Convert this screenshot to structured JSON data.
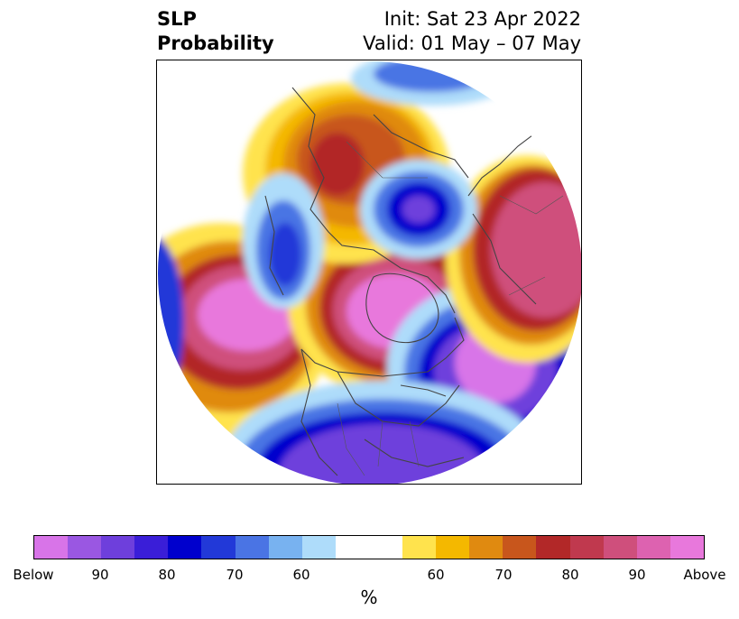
{
  "title": {
    "left_line1": "SLP",
    "left_line2": "Probability",
    "right_line1": "Init: Sat 23 Apr 2022",
    "right_line2": "Valid: 01 May – 07 May"
  },
  "colorbar": {
    "label": "%",
    "below_colors": [
      "#d874e8",
      "#9a57e2",
      "#6e3fdc",
      "#3a1ed8",
      "#0000cd",
      "#2239d8",
      "#4a74e4",
      "#78b2f0",
      "#aedcfa"
    ],
    "neutral_color": "#ffffff",
    "above_colors": [
      "#ffe34d",
      "#f4b800",
      "#e08a10",
      "#c8561c",
      "#b22828",
      "#c0394e",
      "#cf4f7c",
      "#dd62b0",
      "#e878dc"
    ],
    "ticks": [
      "Below",
      "90",
      "80",
      "70",
      "60",
      "60",
      "70",
      "80",
      "90",
      "Above"
    ]
  }
}
